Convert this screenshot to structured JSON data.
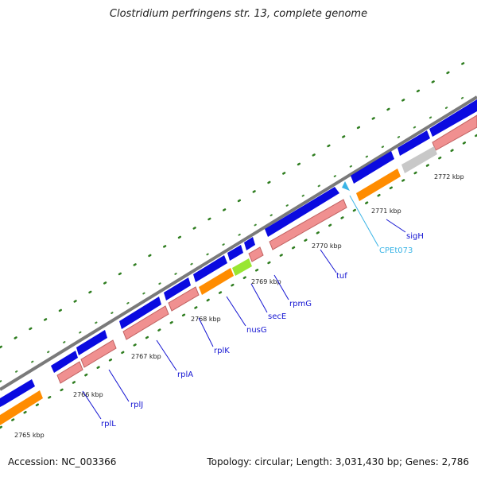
{
  "title": "Clostridium perfringens str. 13, complete genome",
  "footer": {
    "accession": "Accession: NC_003366",
    "summary": "Topology: circular; Length: 3,031,430 bp; Genes: 2,786"
  },
  "colors": {
    "backbone": "#7a7a7a",
    "cds_forward": "#0a0ae0",
    "cds_reverse": "#f09090",
    "cog_orange": "#ff8c00",
    "gray_feature": "#c8c8c8",
    "green_feature": "#99e632",
    "trna": "#3ab4e6",
    "label_line": "#1414d2",
    "gc_dots": "#2e7d1f"
  },
  "scale": {
    "unit": "kbp",
    "ticks": [
      {
        "label": "2765 kbp"
      },
      {
        "label": "2766 kbp"
      },
      {
        "label": "2767 kbp"
      },
      {
        "label": "2768 kbp"
      },
      {
        "label": "2769 kbp"
      },
      {
        "label": "2770 kbp"
      },
      {
        "label": "2771 kbp"
      },
      {
        "label": "2772 kbp"
      }
    ]
  },
  "gene_labels": [
    {
      "name": "rplL"
    },
    {
      "name": "rplJ"
    },
    {
      "name": "rplA"
    },
    {
      "name": "rplK"
    },
    {
      "name": "nusG"
    },
    {
      "name": "secE"
    },
    {
      "name": "rpmG"
    },
    {
      "name": "tuf"
    },
    {
      "name": "CPEt073"
    },
    {
      "name": "sigH"
    }
  ]
}
